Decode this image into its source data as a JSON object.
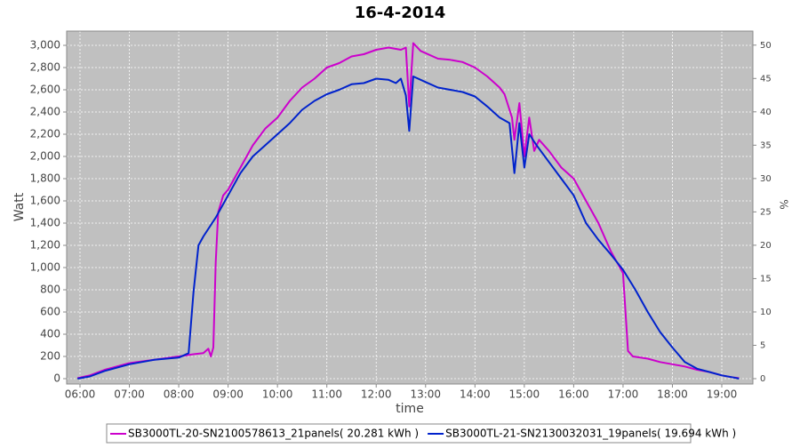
{
  "chart_data": {
    "type": "line",
    "title": "16-4-2014",
    "x_label": "time",
    "y_label": "Watt",
    "y2_label": "%",
    "xlim": [
      5.73,
      19.63
    ],
    "xticks": [
      {
        "value": 6,
        "label": "06:00"
      },
      {
        "value": 7,
        "label": "07:00"
      },
      {
        "value": 8,
        "label": "08:00"
      },
      {
        "value": 9,
        "label": "09:00"
      },
      {
        "value": 10,
        "label": "10:00"
      },
      {
        "value": 11,
        "label": "11:00"
      },
      {
        "value": 12,
        "label": "12:00"
      },
      {
        "value": 13,
        "label": "13:00"
      },
      {
        "value": 14,
        "label": "14:00"
      },
      {
        "value": 15,
        "label": "15:00"
      },
      {
        "value": 16,
        "label": "16:00"
      },
      {
        "value": 17,
        "label": "17:00"
      },
      {
        "value": 18,
        "label": "18:00"
      },
      {
        "value": 19,
        "label": "19:00"
      }
    ],
    "ylim": [
      -48,
      3128
    ],
    "yticks": [
      0,
      200,
      400,
      600,
      800,
      {
        "value": 1000,
        "label": "1,000"
      },
      {
        "value": 1200,
        "label": "1,200"
      },
      {
        "value": 1400,
        "label": "1,400"
      },
      {
        "value": 1600,
        "label": "1,600"
      },
      {
        "value": 1800,
        "label": "1,800"
      },
      {
        "value": 2000,
        "label": "2,000"
      },
      {
        "value": 2200,
        "label": "2,200"
      },
      {
        "value": 2400,
        "label": "2,400"
      },
      {
        "value": 2600,
        "label": "2,600"
      },
      {
        "value": 2800,
        "label": "2,800"
      },
      {
        "value": 3000,
        "label": "3,000"
      }
    ],
    "y2lim": [
      -0.8,
      52.1
    ],
    "y2ticks": [
      0,
      5,
      10,
      15,
      20,
      25,
      30,
      35,
      40,
      45,
      50
    ],
    "grid": true,
    "legend": "bottom",
    "series": [
      {
        "name": "SB3000TL-20-SN2100578613_21panels( 20.281 kWh )",
        "color": "#cc00cc",
        "x": [
          5.95,
          6.2,
          6.5,
          7.0,
          7.5,
          8.0,
          8.3,
          8.5,
          8.6,
          8.65,
          8.7,
          8.75,
          8.8,
          8.9,
          9.0,
          9.25,
          9.5,
          9.75,
          10.0,
          10.25,
          10.5,
          10.75,
          11.0,
          11.25,
          11.5,
          11.75,
          12.0,
          12.25,
          12.5,
          12.6,
          12.67,
          12.75,
          12.9,
          13.25,
          13.5,
          13.75,
          14.0,
          14.25,
          14.5,
          14.6,
          14.75,
          14.8,
          14.9,
          15.0,
          15.1,
          15.2,
          15.3,
          15.5,
          15.75,
          16.0,
          16.25,
          16.5,
          16.75,
          17.0,
          17.05,
          17.1,
          17.2,
          17.5,
          17.75,
          18.0,
          18.25,
          18.5,
          18.75,
          19.0,
          19.25,
          19.35
        ],
        "values": [
          5,
          30,
          80,
          140,
          170,
          200,
          220,
          230,
          270,
          200,
          280,
          1050,
          1500,
          1650,
          1700,
          1900,
          2100,
          2250,
          2350,
          2500,
          2620,
          2700,
          2800,
          2840,
          2900,
          2920,
          2960,
          2980,
          2960,
          2980,
          2450,
          3020,
          2950,
          2880,
          2870,
          2850,
          2800,
          2720,
          2620,
          2560,
          2350,
          2150,
          2480,
          2000,
          2350,
          2050,
          2150,
          2050,
          1900,
          1800,
          1600,
          1400,
          1150,
          950,
          600,
          250,
          200,
          180,
          150,
          130,
          110,
          80,
          60,
          30,
          10,
          5
        ]
      },
      {
        "name": "SB3000TL-21-SN2130032031_19panels( 19.694 kWh )",
        "color": "#0022cc",
        "x": [
          5.95,
          6.2,
          6.5,
          7.0,
          7.5,
          8.0,
          8.2,
          8.3,
          8.4,
          8.5,
          8.75,
          9.0,
          9.25,
          9.5,
          9.75,
          10.0,
          10.25,
          10.5,
          10.75,
          11.0,
          11.25,
          11.5,
          11.75,
          12.0,
          12.25,
          12.4,
          12.5,
          12.6,
          12.67,
          12.75,
          13.0,
          13.25,
          13.5,
          13.75,
          14.0,
          14.25,
          14.5,
          14.7,
          14.8,
          14.9,
          15.0,
          15.1,
          15.25,
          15.5,
          15.75,
          16.0,
          16.25,
          16.5,
          16.75,
          17.0,
          17.25,
          17.5,
          17.75,
          18.0,
          18.25,
          18.5,
          18.75,
          19.0,
          19.25,
          19.35
        ],
        "values": [
          0,
          20,
          70,
          130,
          170,
          190,
          230,
          780,
          1200,
          1280,
          1450,
          1650,
          1850,
          2000,
          2100,
          2200,
          2300,
          2420,
          2500,
          2560,
          2600,
          2650,
          2660,
          2700,
          2690,
          2660,
          2700,
          2550,
          2230,
          2720,
          2670,
          2620,
          2600,
          2580,
          2540,
          2450,
          2350,
          2300,
          1850,
          2300,
          1900,
          2200,
          2100,
          1950,
          1800,
          1650,
          1400,
          1250,
          1120,
          980,
          800,
          600,
          420,
          280,
          150,
          90,
          60,
          30,
          10,
          0
        ]
      }
    ]
  }
}
